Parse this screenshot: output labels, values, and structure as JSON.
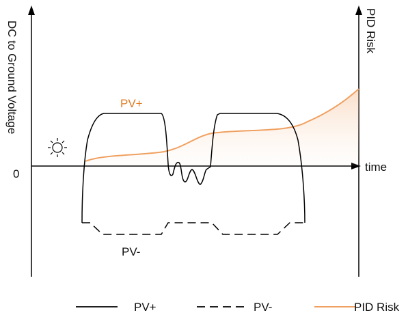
{
  "axes": {
    "left_label": "DC to Ground Voltage",
    "right_label": "PID Risk",
    "x_label": "time",
    "zero_label": "0"
  },
  "annotations": {
    "pv_plus": "PV+",
    "pv_minus": "PV-"
  },
  "legend": {
    "pv_plus": "PV+",
    "pv_minus": "PV-",
    "pid_risk": "PID Risk"
  },
  "colors": {
    "pid_risk": "#f0a060",
    "pv_plus_label": "#e07a20",
    "lines": "#000000"
  },
  "icons": {
    "sun": "sun-icon"
  }
}
